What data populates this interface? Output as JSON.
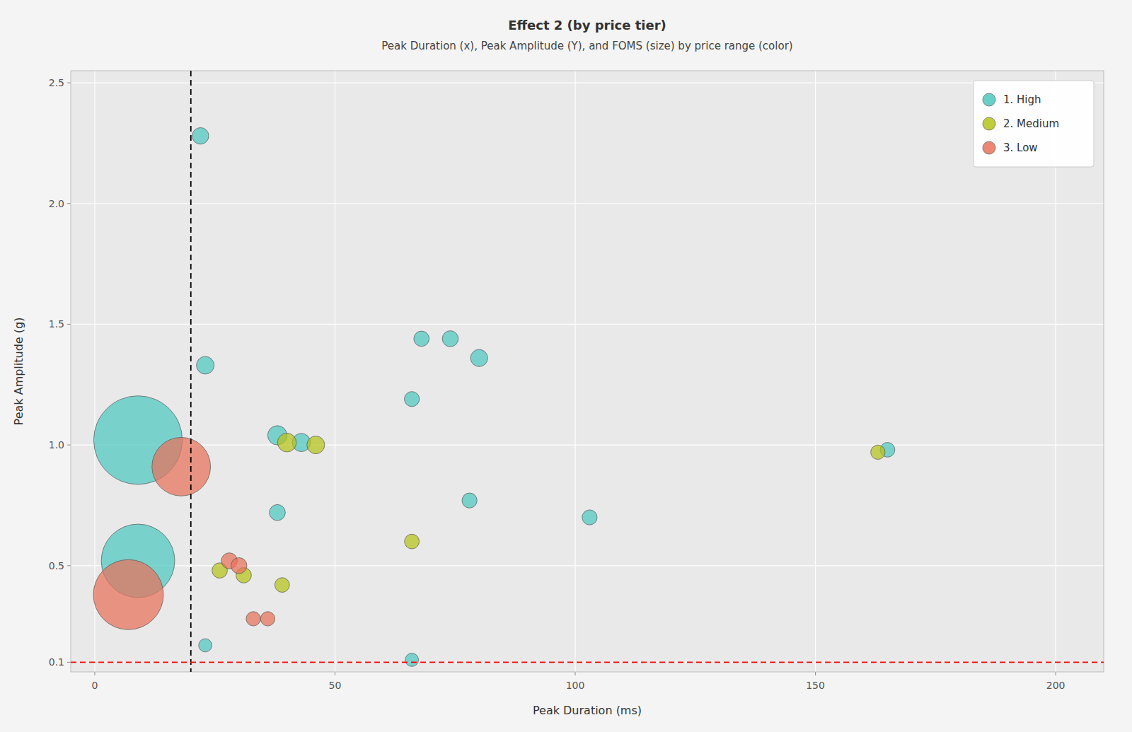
{
  "chart_data": {
    "type": "scatter",
    "title": "Effect 2 (by price tier)",
    "subtitle": "Peak Duration (x), Peak Amplitude (Y), and FOMS (size) by price range (color)",
    "x_label": "Peak Duration (ms)",
    "y_label": "Peak Amplitude (g)",
    "xlim": [
      -5,
      210
    ],
    "ylim": [
      0.06,
      2.55
    ],
    "xticks": [
      0,
      50,
      100,
      150,
      200
    ],
    "yticks": [
      0.1,
      0.5,
      {
        "value": 1.0,
        "label": "1.0"
      },
      1.5,
      {
        "value": 2.0,
        "label": "2.0"
      },
      2.5
    ],
    "grid": true,
    "legend": "upper right",
    "reference_lines": [
      {
        "axis": "x",
        "value": 20,
        "color": "black",
        "line_style": "dashed"
      },
      {
        "axis": "y",
        "value": 0.1,
        "color": "red",
        "line_style": "dashed"
      }
    ],
    "series": [
      {
        "name": "1. High",
        "color": "#4ec8c0",
        "x": [
          22,
          9,
          23,
          38,
          43,
          38,
          23,
          9,
          66,
          74,
          80,
          78,
          103,
          165,
          68,
          66
        ],
        "values": [
          2.28,
          1.02,
          1.33,
          1.04,
          1.01,
          0.72,
          0.17,
          0.52,
          1.19,
          1.44,
          1.36,
          0.77,
          0.7,
          0.98,
          1.44,
          0.11
        ],
        "sizes": [
          280,
          8000,
          320,
          380,
          340,
          260,
          180,
          5500,
          230,
          260,
          300,
          230,
          230,
          220,
          240,
          180
        ]
      },
      {
        "name": "2. Medium",
        "color": "#b5c418",
        "x": [
          40,
          46,
          26,
          31,
          39,
          66,
          163
        ],
        "values": [
          1.01,
          1.0,
          0.48,
          0.46,
          0.42,
          0.6,
          0.97
        ],
        "sizes": [
          360,
          320,
          240,
          240,
          220,
          220,
          210
        ]
      },
      {
        "name": "3. Low",
        "color": "#e8725a",
        "x": [
          18,
          7,
          28,
          30,
          33,
          36
        ],
        "values": [
          0.91,
          0.38,
          0.52,
          0.5,
          0.28,
          0.28
        ],
        "sizes": [
          3500,
          5000,
          260,
          260,
          210,
          210
        ]
      }
    ]
  }
}
